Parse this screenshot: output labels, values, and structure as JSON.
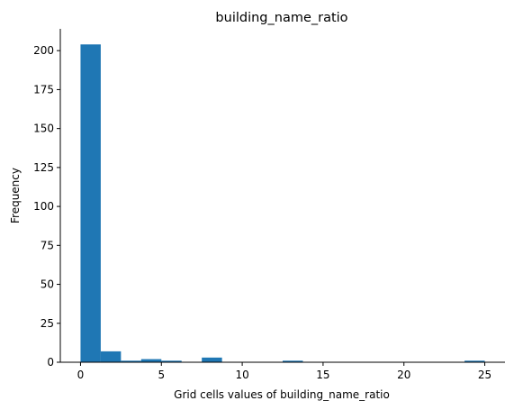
{
  "chart_data": {
    "type": "bar",
    "subtype": "histogram",
    "title": "building_name_ratio",
    "xlabel": "Grid cells values of building_name_ratio",
    "ylabel": "Frequency",
    "color": "#1f77b4",
    "xlim": [
      -1.25,
      26.25
    ],
    "ylim": [
      0,
      214
    ],
    "xticks": [
      0,
      5,
      10,
      15,
      20,
      25
    ],
    "yticks": [
      0,
      25,
      50,
      75,
      100,
      125,
      150,
      175,
      200
    ],
    "bin_edges": [
      0,
      1.25,
      2.5,
      3.75,
      5,
      6.25,
      7.5,
      8.75,
      10,
      11.25,
      12.5,
      13.75,
      15,
      16.25,
      17.5,
      18.75,
      20,
      21.25,
      22.5,
      23.75,
      25
    ],
    "counts": [
      204,
      7,
      1,
      2,
      1,
      0,
      3,
      0,
      0,
      0,
      1,
      0,
      0,
      0,
      0,
      0,
      0,
      0,
      0,
      1
    ],
    "grid": false,
    "spines": [
      "left",
      "bottom"
    ]
  }
}
